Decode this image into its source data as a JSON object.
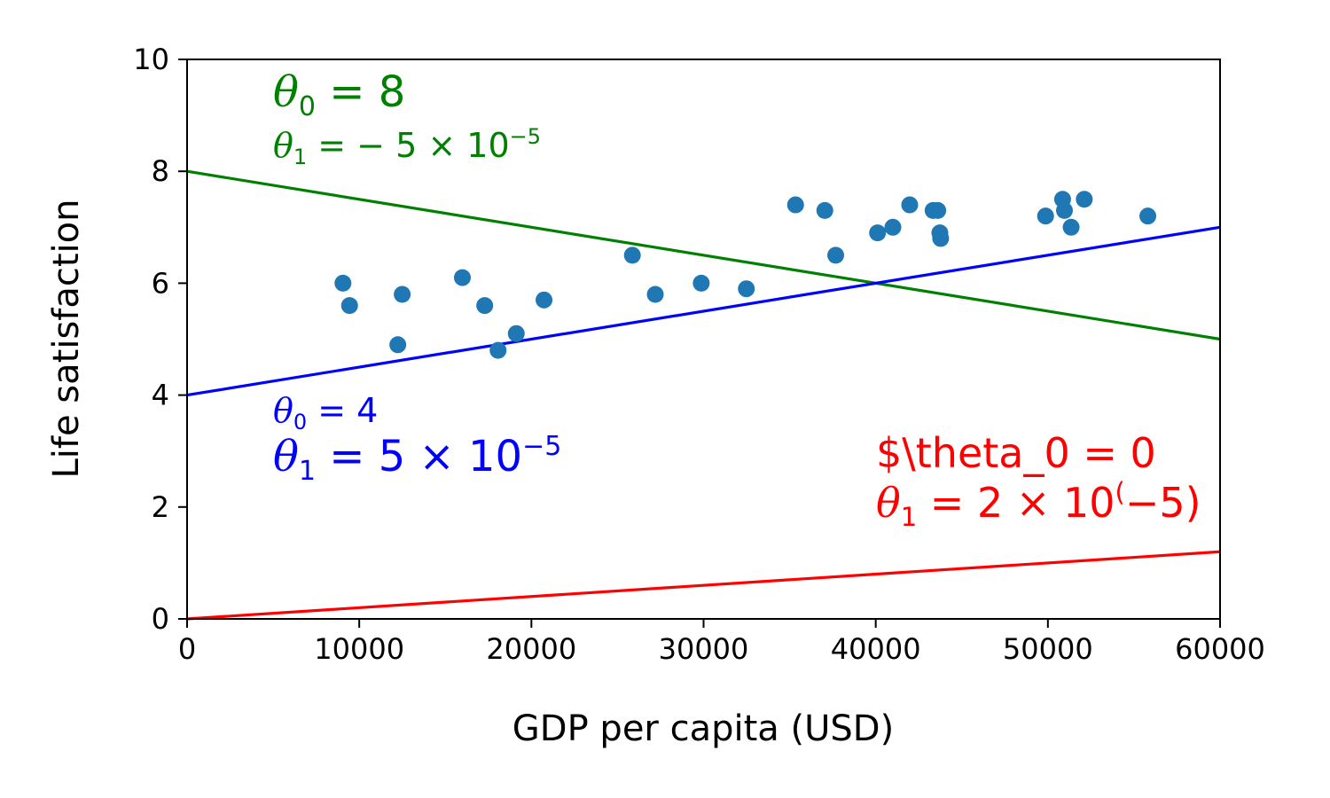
{
  "chart_data": {
    "type": "scatter",
    "xlabel": "GDP per capita (USD)",
    "ylabel": "Life satisfaction",
    "xlim": [
      0,
      60000
    ],
    "ylim": [
      0,
      10
    ],
    "xticks": [
      0,
      10000,
      20000,
      30000,
      40000,
      50000,
      60000
    ],
    "yticks": [
      0,
      2,
      4,
      6,
      8,
      10
    ],
    "grid": false,
    "points": {
      "color": "#1f77b4",
      "x": [
        9054,
        9437,
        12240,
        12495,
        15991,
        17288,
        18064,
        19121,
        20732,
        25864,
        27195,
        29866,
        32485,
        35343,
        37044,
        37675,
        40106,
        40996,
        41973,
        43331,
        43603,
        43724,
        43770,
        49866,
        50854,
        50962,
        51350,
        52114,
        55805
      ],
      "y": [
        6.0,
        5.6,
        4.9,
        5.8,
        6.1,
        5.6,
        4.8,
        5.1,
        5.7,
        6.5,
        5.8,
        6.0,
        5.9,
        7.4,
        7.3,
        6.5,
        6.9,
        7.0,
        7.4,
        7.3,
        7.3,
        6.9,
        6.8,
        7.2,
        7.5,
        7.3,
        7.0,
        7.5,
        7.2
      ]
    },
    "lines": [
      {
        "color": "#008000",
        "theta0": 8,
        "theta1": -5e-05,
        "label_line1": "θ0 = 8",
        "label_line2": "θ1 = − 5 × 10−5"
      },
      {
        "color": "#0000ff",
        "theta0": 4,
        "theta1": 5e-05,
        "label_line1": "θ0 = 4",
        "label_line2": "θ1 = 5 × 10−5"
      },
      {
        "color": "#ff0000",
        "theta0": 0,
        "theta1": 2e-05,
        "label_line1": "$\\theta_0 = 0",
        "label_line2": "θ1 = 2 × 10(−5)"
      }
    ]
  }
}
